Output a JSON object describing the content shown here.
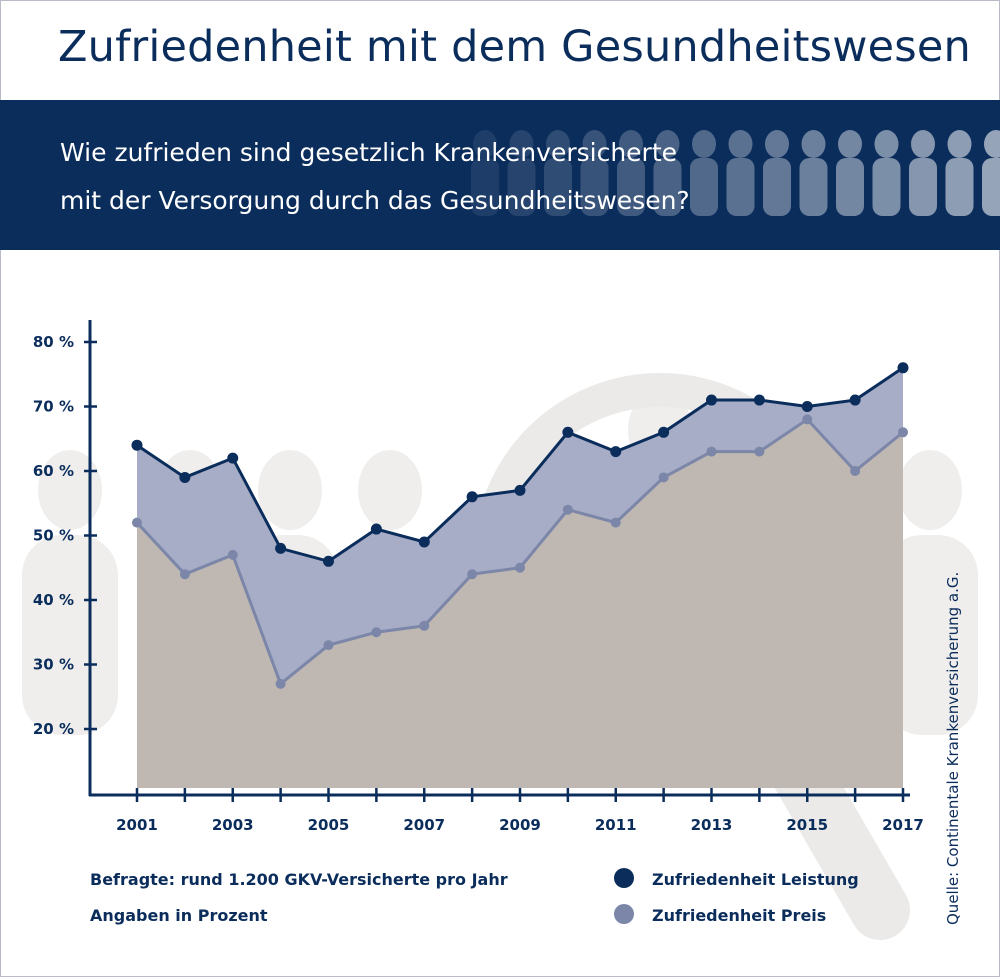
{
  "title": "Zufriedenheit mit dem Gesundheitswesen",
  "question": [
    "Wie zufrieden sind gesetzlich Krankenversicherte",
    "mit der Versorgung durch das Gesundheitswesen?"
  ],
  "colors": {
    "brand": "#0b2d5c",
    "leistung_line": "#0b2d5c",
    "preis_line": "#7b86a8",
    "leistung_fill": "#a7adc6",
    "preis_fill": "#bfb8b2"
  },
  "chart_data": {
    "type": "area",
    "x": [
      2001,
      2002,
      2003,
      2004,
      2005,
      2006,
      2007,
      2008,
      2009,
      2010,
      2011,
      2012,
      2013,
      2014,
      2015,
      2016,
      2017
    ],
    "x_tick_labels": [
      "2001",
      "2003",
      "2005",
      "2007",
      "2009",
      "2011",
      "2013",
      "2015",
      "2017"
    ],
    "y_tick_labels": [
      "80 %",
      "70 %",
      "60 %",
      "50 %",
      "40 %",
      "30 %",
      "20 %"
    ],
    "ylim": [
      20,
      80
    ],
    "grid": false,
    "legend_placement": "bottom-right",
    "series": [
      {
        "name": "Zufriedenheit Leistung",
        "values": [
          64,
          59,
          62,
          48,
          46,
          51,
          49,
          56,
          57,
          66,
          63,
          66,
          71,
          71,
          70,
          71,
          76
        ]
      },
      {
        "name": "Zufriedenheit Preis",
        "values": [
          52,
          44,
          47,
          27,
          33,
          35,
          36,
          44,
          45,
          54,
          52,
          59,
          63,
          63,
          68,
          60,
          66
        ]
      }
    ]
  },
  "notes": [
    "Befragte: rund 1.200 GKV-Versicherte pro Jahr",
    "Angaben in Prozent"
  ],
  "source": "Quelle: Continentale Krankenversicherung a.G."
}
